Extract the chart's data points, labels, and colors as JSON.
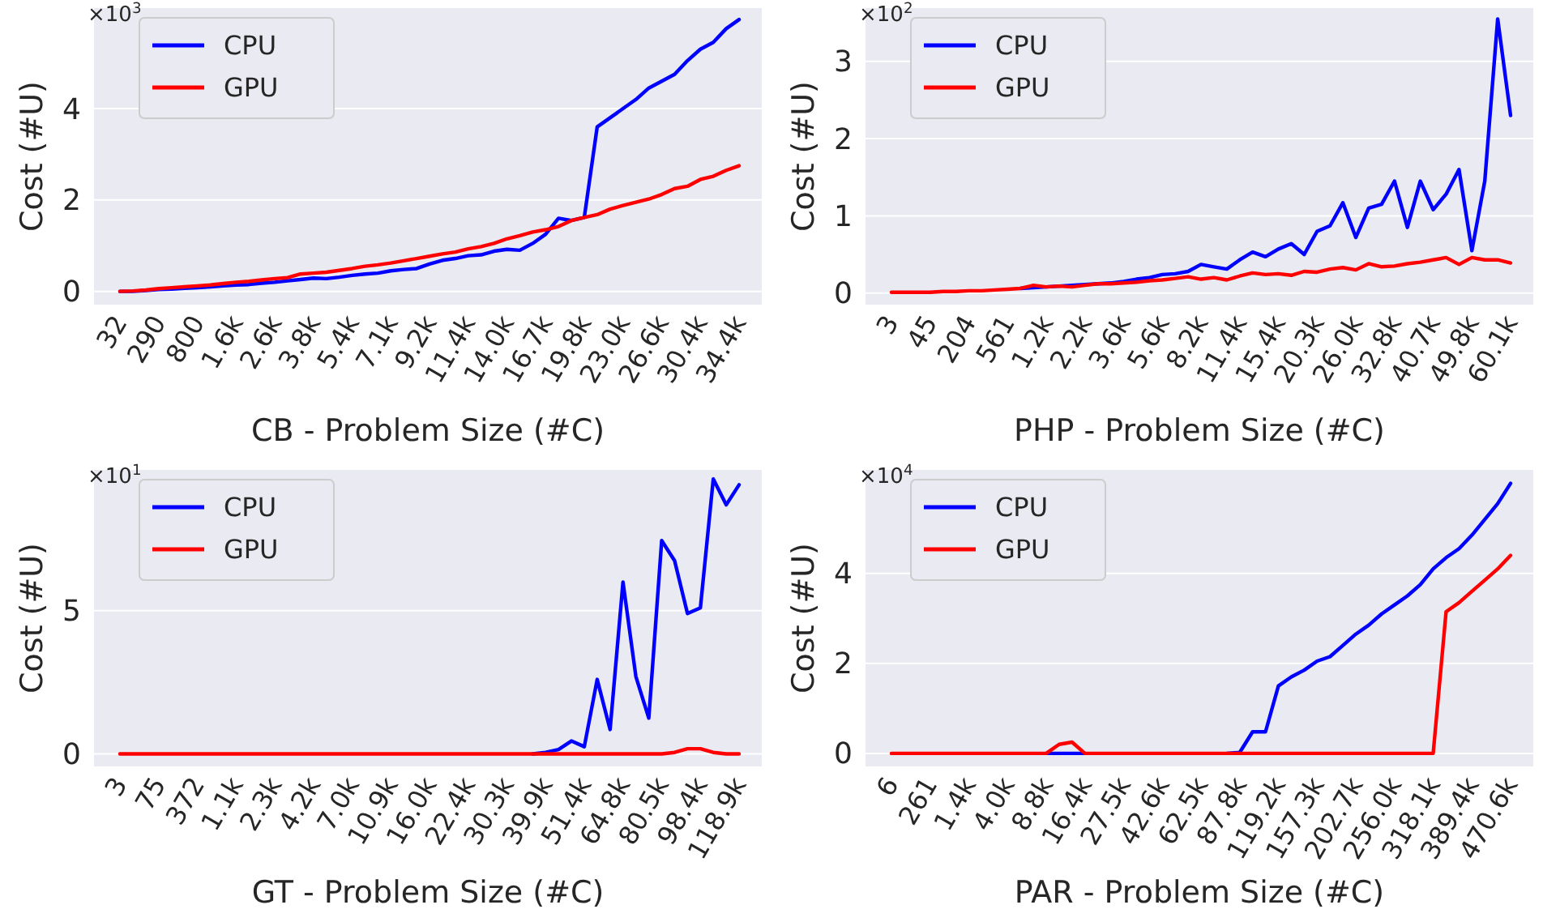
{
  "chart_data": [
    {
      "type": "line",
      "xlabel": "CB - Problem Size (#C)",
      "ylabel": "Cost (#U)",
      "annotations": [
        "×10$^{3}$"
      ],
      "grid": "y",
      "legend": "top left",
      "ylim": [
        -0.29,
        6.2
      ],
      "yticks": [
        0,
        2,
        4
      ],
      "categories": [
        "32",
        null,
        null,
        "290",
        null,
        null,
        "800",
        null,
        null,
        "1.6k",
        null,
        null,
        "2.6k",
        null,
        null,
        "3.8k",
        null,
        null,
        "5.4k",
        null,
        null,
        "7.1k",
        null,
        null,
        "9.2k",
        null,
        null,
        "11.4k",
        null,
        null,
        "14.0k",
        null,
        null,
        "16.7k",
        null,
        null,
        "19.8k",
        null,
        null,
        "23.0k",
        null,
        null,
        "26.6k",
        null,
        null,
        "30.4k",
        null,
        null,
        "34.4k"
      ],
      "series": [
        {
          "name": "CPU",
          "color": "#0000ff",
          "values": [
            0,
            0,
            0.02,
            0.04,
            0.05,
            0.07,
            0.08,
            0.1,
            0.12,
            0.14,
            0.15,
            0.18,
            0.2,
            0.23,
            0.26,
            0.29,
            0.28,
            0.31,
            0.35,
            0.38,
            0.4,
            0.45,
            0.48,
            0.5,
            0.6,
            0.68,
            0.72,
            0.78,
            0.8,
            0.88,
            0.92,
            0.9,
            1.05,
            1.25,
            1.6,
            1.55,
            1.62,
            3.6,
            3.8,
            4.0,
            4.2,
            4.45,
            4.6,
            4.75,
            5.05,
            5.3,
            5.45,
            5.75,
            5.95
          ]
        },
        {
          "name": "GPU",
          "color": "#ff0000",
          "values": [
            0,
            0.01,
            0.03,
            0.06,
            0.08,
            0.1,
            0.12,
            0.14,
            0.17,
            0.2,
            0.22,
            0.25,
            0.28,
            0.3,
            0.38,
            0.4,
            0.42,
            0.46,
            0.5,
            0.55,
            0.58,
            0.62,
            0.67,
            0.72,
            0.77,
            0.82,
            0.86,
            0.93,
            0.98,
            1.05,
            1.15,
            1.22,
            1.3,
            1.35,
            1.42,
            1.55,
            1.62,
            1.68,
            1.8,
            1.88,
            1.95,
            2.02,
            2.12,
            2.25,
            2.3,
            2.45,
            2.52,
            2.65,
            2.75
          ]
        }
      ]
    },
    {
      "type": "line",
      "xlabel": "PHP - Problem Size (#C)",
      "ylabel": "Cost (#U)",
      "annotations": [
        "×10$^{2}$"
      ],
      "grid": "y",
      "legend": "top left",
      "ylim": [
        -0.15,
        3.69
      ],
      "yticks": [
        0,
        1,
        2,
        3
      ],
      "categories": [
        "3",
        null,
        null,
        "45",
        null,
        null,
        "204",
        null,
        null,
        "561",
        null,
        null,
        "1.2k",
        null,
        null,
        "2.2k",
        null,
        null,
        "3.6k",
        null,
        null,
        "5.6k",
        null,
        null,
        "8.2k",
        null,
        null,
        "11.4k",
        null,
        null,
        "15.4k",
        null,
        null,
        "20.3k",
        null,
        null,
        "26.0k",
        null,
        null,
        "32.8k",
        null,
        null,
        "40.7k",
        null,
        null,
        "49.8k",
        null,
        null,
        "60.1k"
      ],
      "series": [
        {
          "name": "CPU",
          "color": "#0000ff",
          "values": [
            null,
            null,
            null,
            null,
            null,
            null,
            null,
            null,
            null,
            null,
            0.06,
            0.07,
            0.08,
            0.09,
            0.1,
            0.11,
            0.12,
            0.13,
            0.15,
            0.18,
            0.2,
            0.24,
            0.25,
            0.28,
            0.37,
            0.34,
            0.31,
            0.43,
            0.53,
            0.47,
            0.57,
            0.64,
            0.5,
            0.8,
            0.87,
            1.17,
            0.72,
            1.1,
            1.15,
            1.45,
            0.85,
            1.45,
            1.08,
            1.28,
            1.6,
            0.55,
            1.45,
            3.55,
            2.3
          ]
        },
        {
          "name": "GPU",
          "color": "#ff0000",
          "values": [
            0.01,
            0.01,
            0.01,
            0.01,
            0.02,
            0.02,
            0.03,
            0.03,
            0.04,
            0.05,
            0.06,
            0.1,
            0.08,
            0.09,
            0.08,
            0.1,
            0.12,
            0.12,
            0.13,
            0.14,
            0.16,
            0.17,
            0.19,
            0.21,
            0.18,
            0.2,
            0.17,
            0.22,
            0.26,
            0.24,
            0.25,
            0.23,
            0.28,
            0.27,
            0.31,
            0.33,
            0.3,
            0.38,
            0.34,
            0.35,
            0.38,
            0.4,
            0.43,
            0.46,
            0.37,
            0.46,
            0.43,
            0.43,
            0.39
          ]
        }
      ]
    },
    {
      "type": "line",
      "xlabel": "GT - Problem Size (#C)",
      "ylabel": "Cost (#U)",
      "annotations": [
        "×10$^{1}$"
      ],
      "grid": "y",
      "legend": "top left",
      "ylim": [
        -0.44,
        9.92
      ],
      "yticks": [
        0,
        5
      ],
      "categories": [
        "3",
        null,
        null,
        "75",
        null,
        null,
        "372",
        null,
        null,
        "1.1k",
        null,
        null,
        "2.3k",
        null,
        null,
        "4.2k",
        null,
        null,
        "7.0k",
        null,
        null,
        "10.9k",
        null,
        null,
        "16.0k",
        null,
        null,
        "22.4k",
        null,
        null,
        "30.3k",
        null,
        null,
        "39.9k",
        null,
        null,
        "51.4k",
        null,
        null,
        "64.8k",
        null,
        null,
        "80.5k",
        null,
        null,
        "98.4k",
        null,
        null,
        "118.9k"
      ],
      "series": [
        {
          "name": "CPU",
          "color": "#0000ff",
          "values": [
            null,
            null,
            null,
            null,
            null,
            null,
            null,
            null,
            null,
            null,
            null,
            null,
            null,
            null,
            null,
            null,
            null,
            null,
            null,
            null,
            null,
            null,
            null,
            null,
            null,
            null,
            null,
            null,
            null,
            null,
            null,
            null,
            0,
            0.05,
            0.15,
            0.45,
            0.25,
            2.6,
            0.85,
            6.0,
            2.7,
            1.25,
            7.45,
            6.75,
            4.9,
            5.1,
            9.6,
            8.7,
            9.4
          ]
        },
        {
          "name": "GPU",
          "color": "#ff0000",
          "values": [
            0,
            0,
            0,
            0,
            0,
            0,
            0,
            0,
            0,
            0,
            0,
            0,
            0,
            0,
            0,
            0,
            0,
            0,
            0,
            0,
            0,
            0,
            0,
            0,
            0,
            0,
            0,
            0,
            0,
            0,
            0,
            0,
            0,
            0,
            0,
            0,
            0,
            0,
            0,
            0,
            0,
            0,
            0,
            0.05,
            0.18,
            0.18,
            0.05,
            0,
            0
          ]
        }
      ]
    },
    {
      "type": "line",
      "xlabel": "PAR - Problem Size (#C)",
      "ylabel": "Cost (#U)",
      "annotations": [
        "×10$^{4}$"
      ],
      "grid": "y",
      "legend": "top left",
      "ylim": [
        -0.29,
        6.3
      ],
      "yticks": [
        0,
        2,
        4
      ],
      "categories": [
        "6",
        null,
        null,
        "261",
        null,
        null,
        "1.4k",
        null,
        null,
        "4.0k",
        null,
        null,
        "8.8k",
        null,
        null,
        "16.4k",
        null,
        null,
        "27.5k",
        null,
        null,
        "42.6k",
        null,
        null,
        "62.5k",
        null,
        null,
        "87.8k",
        null,
        null,
        "119.2k",
        null,
        null,
        "157.3k",
        null,
        null,
        "202.7k",
        null,
        null,
        "256.0k",
        null,
        null,
        "318.1k",
        null,
        null,
        "389.4k",
        null,
        null,
        "470.6k"
      ],
      "series": [
        {
          "name": "CPU",
          "color": "#0000ff",
          "values": [
            null,
            null,
            null,
            null,
            null,
            null,
            null,
            null,
            null,
            null,
            null,
            null,
            0,
            0,
            0,
            0,
            null,
            null,
            null,
            null,
            null,
            null,
            null,
            null,
            null,
            null,
            0,
            0.02,
            0.48,
            0.48,
            1.5,
            1.7,
            1.85,
            2.05,
            2.15,
            2.4,
            2.65,
            2.85,
            3.1,
            3.3,
            3.5,
            3.75,
            4.1,
            4.35,
            4.55,
            4.85,
            5.2,
            5.55,
            6.0
          ]
        },
        {
          "name": "GPU",
          "color": "#ff0000",
          "values": [
            0,
            0,
            0,
            0,
            0,
            0,
            0,
            0,
            0,
            0,
            0,
            0,
            0,
            0.2,
            0.25,
            0,
            0,
            0,
            0,
            0,
            0,
            0,
            0,
            0,
            0,
            0,
            0,
            0,
            0,
            0,
            0,
            0,
            0,
            0,
            0,
            0,
            0,
            0,
            0,
            0,
            0,
            0,
            0,
            3.15,
            3.35,
            3.6,
            3.85,
            4.1,
            4.4
          ]
        }
      ]
    }
  ]
}
